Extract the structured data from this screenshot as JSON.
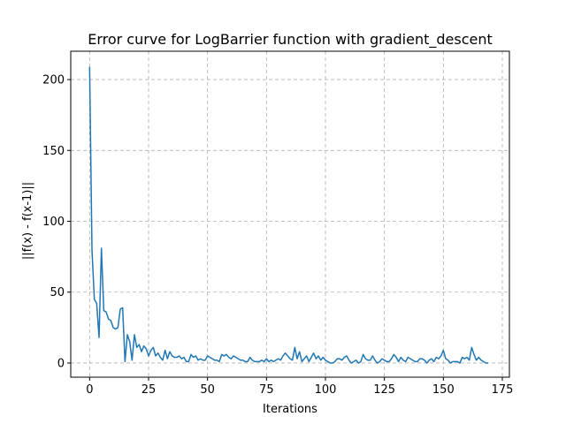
{
  "chart_data": {
    "type": "line",
    "title": "Error curve for LogBarrier function with gradient_descent",
    "xlabel": "Iterations",
    "ylabel": "||f(x) - f(x-1)||",
    "xlim": [
      -8,
      178
    ],
    "ylim": [
      -10,
      220
    ],
    "x_ticks": [
      0,
      25,
      50,
      75,
      100,
      125,
      150,
      175
    ],
    "y_ticks": [
      0,
      50,
      100,
      150,
      200
    ],
    "grid": true,
    "grid_style": "dashed",
    "line_color": "#1f77b4",
    "series": [
      {
        "x": [
          0,
          1,
          2,
          3,
          4,
          5,
          6,
          7,
          8,
          9,
          10,
          11,
          12,
          13,
          14,
          15,
          16,
          17,
          18,
          19,
          20,
          21,
          22,
          23,
          24,
          25,
          26,
          27,
          28,
          29,
          30,
          31,
          32,
          33,
          34,
          35,
          36,
          37,
          38,
          39,
          40,
          41,
          42,
          43,
          44,
          45,
          46,
          47,
          48,
          49,
          50,
          51,
          52,
          53,
          54,
          55,
          56,
          57,
          58,
          59,
          60,
          61,
          62,
          63,
          64,
          65,
          66,
          67,
          68,
          69,
          70,
          71,
          72,
          73,
          74,
          75,
          76,
          77,
          78,
          79,
          80,
          81,
          82,
          83,
          84,
          85,
          86,
          87,
          88,
          89,
          90,
          91,
          92,
          93,
          94,
          95,
          96,
          97,
          98,
          99,
          100,
          101,
          102,
          103,
          104,
          105,
          106,
          107,
          108,
          109,
          110,
          111,
          112,
          113,
          114,
          115,
          116,
          117,
          118,
          119,
          120,
          121,
          122,
          123,
          124,
          125,
          126,
          127,
          128,
          129,
          130,
          131,
          132,
          133,
          134,
          135,
          136,
          137,
          138,
          139,
          140,
          141,
          142,
          143,
          144,
          145,
          146,
          147,
          148,
          149,
          150,
          151,
          152,
          153,
          154,
          155,
          156,
          157,
          158,
          159,
          160,
          161,
          162,
          163,
          164,
          165,
          166,
          167,
          168,
          169
        ],
        "values": [
          209,
          80,
          45,
          42,
          18,
          81,
          37,
          36,
          31,
          30,
          25,
          24,
          25,
          38,
          39,
          1,
          20,
          15,
          2,
          20,
          11,
          13,
          8,
          12,
          10,
          5,
          9,
          11,
          5,
          7,
          4,
          2,
          9,
          3,
          8,
          5,
          4,
          4,
          5,
          3,
          4,
          1,
          1,
          6,
          4,
          5,
          2,
          3,
          2,
          2,
          5,
          4,
          3,
          2,
          2,
          1,
          6,
          5,
          6,
          4,
          3,
          5,
          4,
          3,
          2,
          2,
          1,
          1,
          4,
          2,
          1,
          1,
          1,
          2,
          1,
          3,
          1,
          2,
          1,
          2,
          3,
          2,
          5,
          7,
          5,
          3,
          2,
          11,
          3,
          8,
          1,
          3,
          5,
          1,
          4,
          7,
          3,
          5,
          2,
          4,
          2,
          1,
          0,
          0,
          1,
          3,
          3,
          2,
          4,
          5,
          2,
          0,
          1,
          2,
          0,
          1,
          6,
          3,
          2,
          2,
          5,
          2,
          0,
          1,
          3,
          2,
          1,
          1,
          3,
          6,
          4,
          1,
          4,
          2,
          1,
          4,
          3,
          2,
          1,
          1,
          3,
          3,
          2,
          0,
          2,
          3,
          1,
          4,
          3,
          5,
          9,
          3,
          2,
          0,
          1,
          1,
          1,
          0,
          4,
          3,
          4,
          2,
          11,
          6,
          2,
          4,
          2,
          1,
          0,
          0
        ]
      }
    ]
  }
}
